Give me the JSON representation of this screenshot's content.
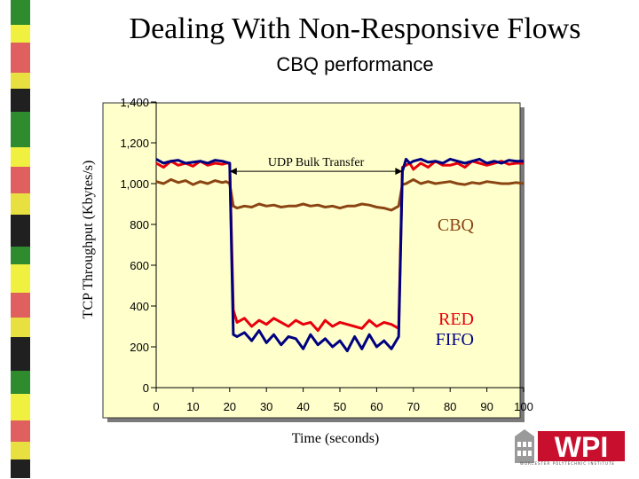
{
  "slide": {
    "title": "Dealing With Non-Responsive Flows",
    "subtitle": "CBQ performance"
  },
  "logo": {
    "text": "WPI",
    "tagline": "WORCESTER POLYTECHNIC INSTITUTE"
  },
  "colors": {
    "plot_background": "#ffffcc",
    "cbq": "#8b4513",
    "red": "#e8000b",
    "fifo": "#000080",
    "logo_red": "#c8102e",
    "stripe": [
      "#e8e040",
      "#2e8b2e",
      "#e06060",
      "#202020",
      "#f0f040"
    ]
  },
  "chart_data": {
    "type": "line",
    "xlabel": "Time (seconds)",
    "ylabel": "TCP Throughput (Kbytes/s)",
    "xlim": [
      0,
      100
    ],
    "ylim": [
      0,
      1400
    ],
    "xticks": [
      0,
      10,
      20,
      30,
      40,
      50,
      60,
      70,
      80,
      90,
      100
    ],
    "yticks": [
      0,
      200,
      400,
      600,
      800,
      1000,
      1200,
      1400
    ],
    "ytick_labels": [
      "0",
      "200",
      "400",
      "600",
      "800",
      "1,000",
      "1,200",
      "1,400"
    ],
    "grid": false,
    "annotation": {
      "text": "UDP Bulk Transfer",
      "x_start": 20,
      "x_end": 67,
      "y": 1130
    },
    "x": [
      0,
      2,
      4,
      6,
      8,
      10,
      12,
      14,
      16,
      18,
      19,
      20,
      21,
      22,
      24,
      26,
      28,
      30,
      32,
      34,
      36,
      38,
      40,
      42,
      44,
      46,
      48,
      50,
      52,
      54,
      56,
      58,
      60,
      62,
      64,
      66,
      67,
      68,
      69,
      70,
      72,
      74,
      76,
      78,
      80,
      82,
      84,
      86,
      88,
      90,
      92,
      94,
      96,
      98,
      100
    ],
    "series": [
      {
        "name": "CBQ",
        "values": [
          1010,
          1000,
          1020,
          1005,
          1015,
          995,
          1010,
          1000,
          1015,
          1005,
          1010,
          1000,
          890,
          880,
          890,
          885,
          900,
          890,
          895,
          885,
          890,
          890,
          900,
          890,
          895,
          885,
          890,
          880,
          890,
          890,
          900,
          895,
          885,
          880,
          870,
          890,
          995,
          1000,
          1010,
          1020,
          1000,
          1010,
          1000,
          1005,
          1010,
          1000,
          995,
          1005,
          1000,
          1010,
          1005,
          1000,
          1000,
          1005,
          1000
        ]
      },
      {
        "name": "RED",
        "values": [
          1100,
          1080,
          1110,
          1090,
          1100,
          1085,
          1110,
          1090,
          1100,
          1095,
          1100,
          1100,
          380,
          320,
          340,
          300,
          330,
          310,
          340,
          320,
          300,
          330,
          310,
          320,
          280,
          330,
          300,
          320,
          310,
          300,
          290,
          330,
          300,
          320,
          310,
          290,
          1080,
          1090,
          1100,
          1070,
          1100,
          1080,
          1110,
          1090,
          1090,
          1100,
          1080,
          1110,
          1100,
          1090,
          1100,
          1110,
          1095,
          1100,
          1100
        ]
      },
      {
        "name": "FIFO",
        "values": [
          1120,
          1100,
          1110,
          1115,
          1100,
          1105,
          1110,
          1100,
          1115,
          1110,
          1105,
          1100,
          260,
          250,
          270,
          230,
          280,
          220,
          260,
          210,
          250,
          240,
          190,
          260,
          210,
          240,
          200,
          230,
          180,
          250,
          190,
          260,
          200,
          230,
          190,
          250,
          1060,
          1120,
          1100,
          1110,
          1120,
          1105,
          1110,
          1100,
          1120,
          1110,
          1100,
          1110,
          1120,
          1100,
          1110,
          1100,
          1115,
          1110,
          1110
        ]
      }
    ],
    "series_labels": [
      {
        "text": "CBQ",
        "y": 800
      },
      {
        "text": "RED",
        "y": 340
      },
      {
        "text": "FIFO",
        "y": 240
      }
    ]
  }
}
